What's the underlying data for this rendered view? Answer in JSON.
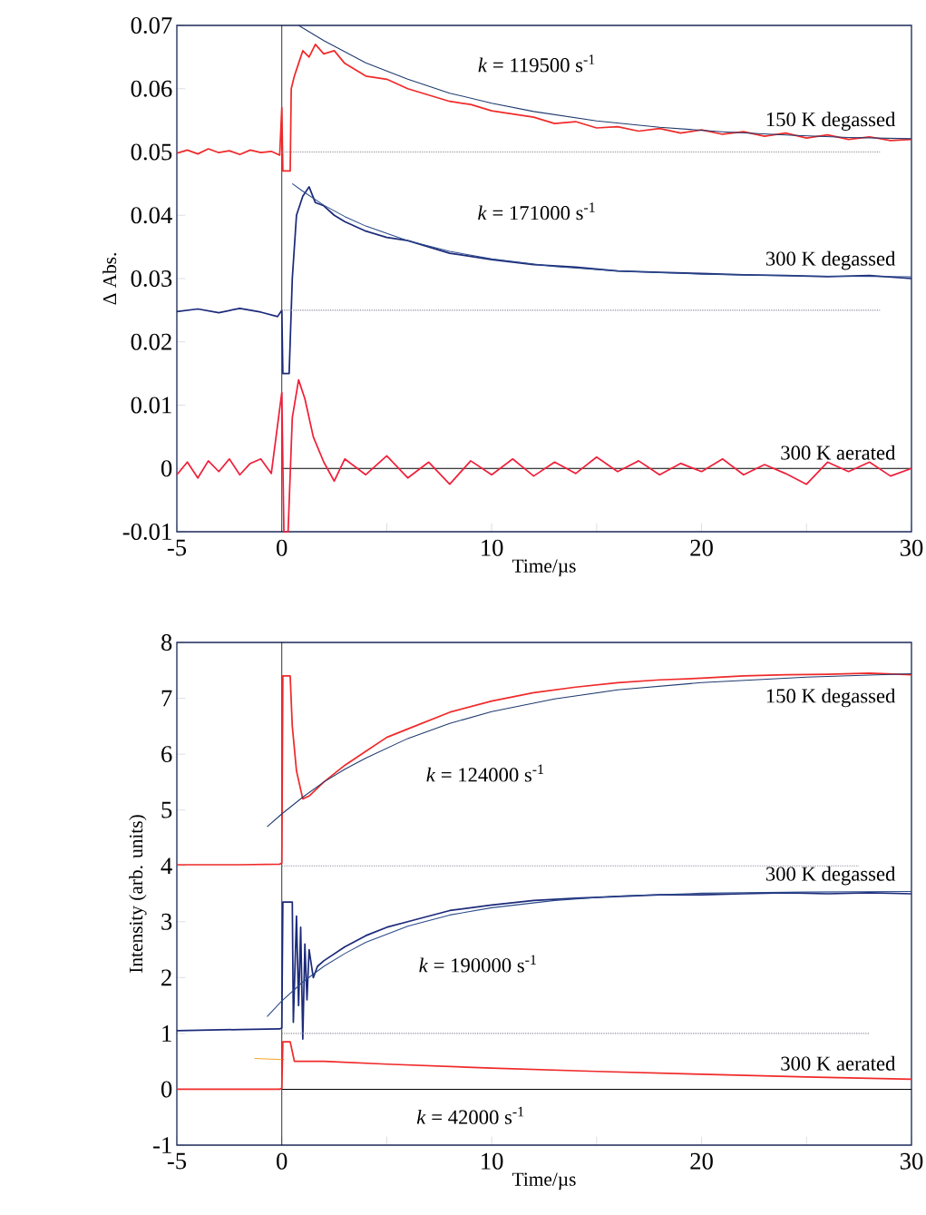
{
  "chart_data": [
    {
      "type": "line",
      "xlabel": "Time/µs",
      "ylabel": "Δ Abs.",
      "xlim": [
        -5,
        30
      ],
      "ylim": [
        -0.01,
        0.07
      ],
      "marker": "none",
      "xticks": [
        -5,
        0,
        {
          "value": 5,
          "label": null
        },
        10,
        {
          "value": 15,
          "label": null
        },
        20,
        {
          "value": 25,
          "label": null
        },
        30
      ],
      "yticks": [
        -0.01,
        0,
        0.01,
        0.02,
        0.03,
        0.04,
        0.05,
        0.06,
        0.07
      ],
      "ref_lines": [
        {
          "axis": "x",
          "value": 0,
          "color": "#000000"
        }
      ],
      "annotations": [
        "*k* = 119500 s$^{-1}$",
        "*k* = 171000 s$^{-1}$"
      ],
      "series": [
        {
          "name": "150 K degassed",
          "color": "#f02a2a",
          "x": [
            -5,
            -4.5,
            -4,
            -3.5,
            -3,
            -2.5,
            -2,
            -1.5,
            -1,
            -0.5,
            -0.1,
            0,
            0.05,
            0.4,
            0.45,
            0.6,
            0.8,
            1,
            1.3,
            1.6,
            2,
            2.5,
            3,
            4,
            5,
            6,
            7,
            8,
            9,
            10,
            11,
            12,
            13,
            14,
            15,
            16,
            17,
            18,
            19,
            20,
            21,
            22,
            23,
            24,
            25,
            26,
            27,
            28,
            29,
            30
          ],
          "values": [
            0.0498,
            0.0503,
            0.0497,
            0.0505,
            0.0499,
            0.0502,
            0.0496,
            0.0503,
            0.0499,
            0.0501,
            0.0495,
            0.057,
            0.047,
            0.047,
            0.06,
            0.062,
            0.064,
            0.066,
            0.065,
            0.067,
            0.0655,
            0.066,
            0.064,
            0.062,
            0.0615,
            0.06,
            0.059,
            0.058,
            0.0575,
            0.0565,
            0.056,
            0.0555,
            0.0545,
            0.0548,
            0.0538,
            0.054,
            0.0533,
            0.0537,
            0.053,
            0.0535,
            0.0528,
            0.0532,
            0.0525,
            0.053,
            0.0522,
            0.0527,
            0.052,
            0.0524,
            0.0518,
            0.052
          ]
        },
        {
          "color": "#1f3a6e",
          "x": [
            0.8,
            2,
            4,
            6,
            8,
            10,
            12,
            15,
            18,
            21,
            24,
            27,
            30
          ],
          "values": [
            0.07,
            0.0676,
            0.0641,
            0.0615,
            0.0593,
            0.0577,
            0.0564,
            0.0549,
            0.0539,
            0.0532,
            0.0527,
            0.0523,
            0.0521
          ]
        },
        {
          "color": "#8a8a9a",
          "line_style": "dotted",
          "x": [
            0,
            28.5
          ],
          "values": [
            0.05,
            0.05
          ]
        },
        {
          "name": "300 K degassed",
          "color": "#1c2a7a",
          "x": [
            -5,
            -4,
            -3,
            -2,
            -1,
            -0.2,
            0,
            0.05,
            0.35,
            0.5,
            0.7,
            1,
            1.3,
            1.6,
            2,
            2.5,
            3,
            4,
            5,
            6,
            7,
            8,
            9,
            10,
            12,
            14,
            16,
            18,
            20,
            22,
            24,
            26,
            28,
            30
          ],
          "values": [
            0.0248,
            0.0252,
            0.0246,
            0.0253,
            0.0247,
            0.024,
            0.025,
            0.015,
            0.015,
            0.03,
            0.04,
            0.043,
            0.0445,
            0.042,
            0.0415,
            0.04,
            0.039,
            0.0375,
            0.0365,
            0.036,
            0.035,
            0.034,
            0.0335,
            0.033,
            0.0322,
            0.0318,
            0.0312,
            0.031,
            0.0308,
            0.0306,
            0.0305,
            0.0303,
            0.0305,
            0.03
          ]
        },
        {
          "color": "#2a4a8a",
          "x": [
            0.5,
            1,
            2,
            3,
            4,
            6,
            8,
            10,
            13,
            16,
            20,
            25,
            30
          ],
          "values": [
            0.045,
            0.0438,
            0.0416,
            0.0398,
            0.0383,
            0.036,
            0.0343,
            0.0331,
            0.0319,
            0.0312,
            0.0307,
            0.0304,
            0.0303
          ]
        },
        {
          "color": "#8a8a9a",
          "line_style": "dotted",
          "x": [
            0,
            28.5
          ],
          "values": [
            0.025,
            0.025
          ]
        },
        {
          "color": "#000000",
          "x": [
            0,
            30
          ],
          "values": [
            0,
            0
          ]
        },
        {
          "name": "300 K aerated",
          "color": "#f0203a",
          "x": [
            -5,
            -4.5,
            -4,
            -3.5,
            -3,
            -2.5,
            -2,
            -1.5,
            -1,
            -0.5,
            0,
            0.1,
            0.3,
            0.5,
            0.8,
            1.1,
            1.5,
            2,
            2.5,
            3,
            4,
            5,
            6,
            7,
            8,
            9,
            10,
            11,
            12,
            13,
            14,
            15,
            16,
            17,
            18,
            19,
            20,
            21,
            22,
            23,
            24,
            25,
            26,
            27,
            28,
            29,
            30
          ],
          "values": [
            -0.001,
            0.001,
            -0.0015,
            0.0012,
            -0.0005,
            0.0015,
            -0.001,
            0.0008,
            0.0015,
            -0.0008,
            0.012,
            -0.01,
            -0.01,
            0.008,
            0.014,
            0.011,
            0.005,
            0.001,
            -0.002,
            0.0015,
            -0.001,
            0.002,
            -0.0015,
            0.001,
            -0.0025,
            0.0012,
            -0.001,
            0.0015,
            -0.0012,
            0.001,
            -0.0008,
            0.0018,
            -0.0005,
            0.0012,
            -0.001,
            0.0008,
            -0.0005,
            0.0015,
            -0.001,
            0.0006,
            -0.0008,
            -0.0025,
            0.001,
            -0.0005,
            0.001,
            -0.0012,
            0.0
          ]
        }
      ]
    },
    {
      "type": "line",
      "xlabel": "Time/µs",
      "ylabel": "Intensity (arb. units)",
      "xlim": [
        -5,
        30
      ],
      "ylim": [
        -1,
        8
      ],
      "marker": "none",
      "xticks": [
        -5,
        0,
        {
          "value": 5,
          "label": null
        },
        10,
        {
          "value": 15,
          "label": null
        },
        20,
        {
          "value": 25,
          "label": null
        },
        30
      ],
      "yticks": [
        -1,
        0,
        1,
        2,
        3,
        4,
        5,
        6,
        7,
        8
      ],
      "ref_lines": [
        {
          "axis": "x",
          "value": 0,
          "color": "#000000"
        }
      ],
      "annotations": [
        "*k* = 124000 s$^{-1}$",
        "*k* = 190000 s$^{-1}$",
        "*k* = 42000 s$^{-1}$"
      ],
      "series": [
        {
          "name": "150 K degassed",
          "color": "#f02a2a",
          "x": [
            -5,
            -2,
            -0.1,
            0,
            0.05,
            0.4,
            0.5,
            0.7,
            1,
            1.3,
            2,
            3,
            4,
            5,
            6,
            8,
            10,
            12,
            14,
            16,
            18,
            20,
            22,
            24,
            26,
            28,
            30
          ],
          "values": [
            4.02,
            4.02,
            4.03,
            4.05,
            7.4,
            7.4,
            6.5,
            5.7,
            5.2,
            5.25,
            5.5,
            5.8,
            6.05,
            6.3,
            6.45,
            6.75,
            6.95,
            7.1,
            7.2,
            7.28,
            7.33,
            7.36,
            7.4,
            7.42,
            7.43,
            7.45,
            7.42
          ]
        },
        {
          "color": "#1f3a6e",
          "x": [
            -0.7,
            0,
            1,
            2,
            3,
            4,
            6,
            8,
            10,
            13,
            16,
            20,
            25,
            30
          ],
          "values": [
            4.7,
            4.93,
            5.23,
            5.5,
            5.73,
            5.93,
            6.28,
            6.55,
            6.76,
            6.99,
            7.15,
            7.28,
            7.38,
            7.44
          ]
        },
        {
          "color": "#8a8a9a",
          "line_style": "dotted",
          "x": [
            0,
            27.5
          ],
          "values": [
            4,
            4
          ]
        },
        {
          "name": "300 K degassed",
          "color": "#1c2a7a",
          "x": [
            -5,
            -2,
            -0.1,
            0,
            0.05,
            0.5,
            0.55,
            0.7,
            0.8,
            0.9,
            1,
            1.1,
            1.2,
            1.3,
            1.5,
            1.7,
            2,
            3,
            4,
            5,
            6,
            8,
            10,
            12,
            14,
            16,
            18,
            20,
            22,
            24,
            26,
            28,
            30
          ],
          "values": [
            1.05,
            1.07,
            1.08,
            1.1,
            3.35,
            3.35,
            1.2,
            3.1,
            1.5,
            2.9,
            0.9,
            2.6,
            1.6,
            2.5,
            2.0,
            2.2,
            2.3,
            2.55,
            2.75,
            2.9,
            3.0,
            3.2,
            3.3,
            3.38,
            3.42,
            3.45,
            3.48,
            3.48,
            3.5,
            3.52,
            3.5,
            3.52,
            3.5
          ]
        },
        {
          "color": "#2a4a8a",
          "x": [
            -0.7,
            0,
            1,
            2,
            3,
            4,
            6,
            8,
            10,
            13,
            16,
            20,
            25,
            30
          ],
          "values": [
            1.3,
            1.58,
            1.92,
            2.2,
            2.43,
            2.63,
            2.92,
            3.12,
            3.25,
            3.38,
            3.46,
            3.51,
            3.53,
            3.54
          ]
        },
        {
          "color": "#8a8a9a",
          "line_style": "dotted",
          "x": [
            0,
            28
          ],
          "values": [
            1,
            1
          ]
        },
        {
          "color": "#000000",
          "x": [
            0,
            30
          ],
          "values": [
            0,
            0
          ]
        },
        {
          "color": "#f5a623",
          "x": [
            -1.3,
            0.1
          ],
          "values": [
            0.55,
            0.53
          ]
        },
        {
          "name": "300 K aerated",
          "color": "#f02a2a",
          "x": [
            -5,
            -0.1,
            0,
            0.05,
            0.4,
            0.6,
            1,
            2,
            5,
            10,
            15,
            20,
            25,
            30
          ],
          "values": [
            0,
            0,
            0.02,
            0.85,
            0.85,
            0.5,
            0.5,
            0.5,
            0.45,
            0.38,
            0.32,
            0.27,
            0.22,
            0.18
          ]
        }
      ]
    }
  ]
}
